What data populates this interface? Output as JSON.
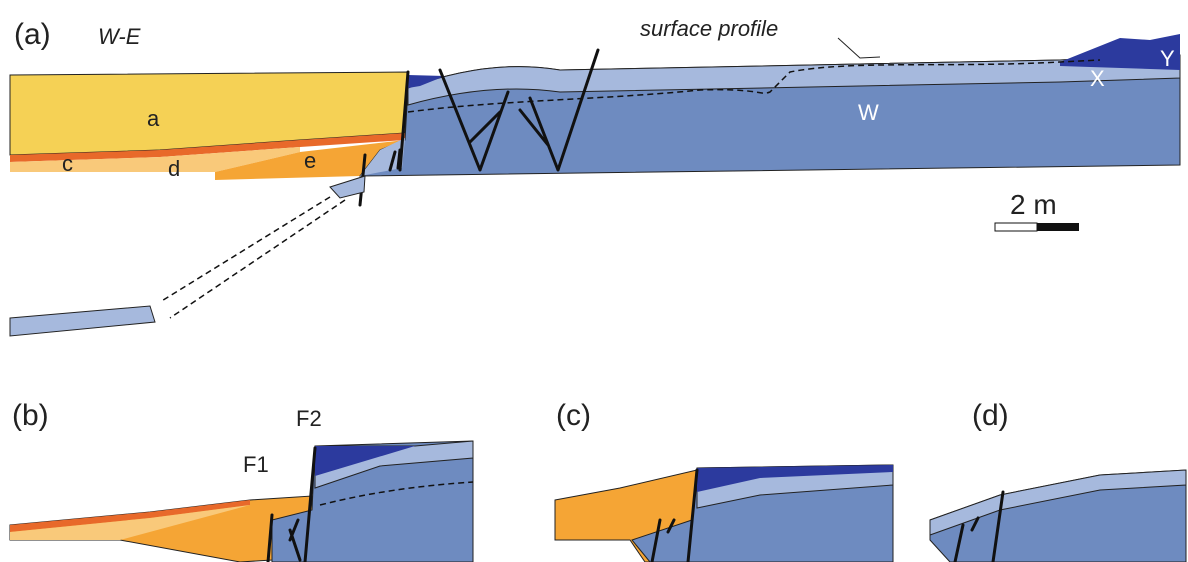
{
  "panels": [
    {
      "label": "(a)",
      "direction": "W-E",
      "annotation": "surface profile",
      "units": [
        "a",
        "c",
        "d",
        "e",
        "W",
        "X",
        "Y"
      ],
      "scale_bar": "2 m"
    },
    {
      "label": "(b)",
      "faults": [
        "F2",
        "F1"
      ]
    },
    {
      "label": "(c)"
    },
    {
      "label": "(d)"
    }
  ]
}
